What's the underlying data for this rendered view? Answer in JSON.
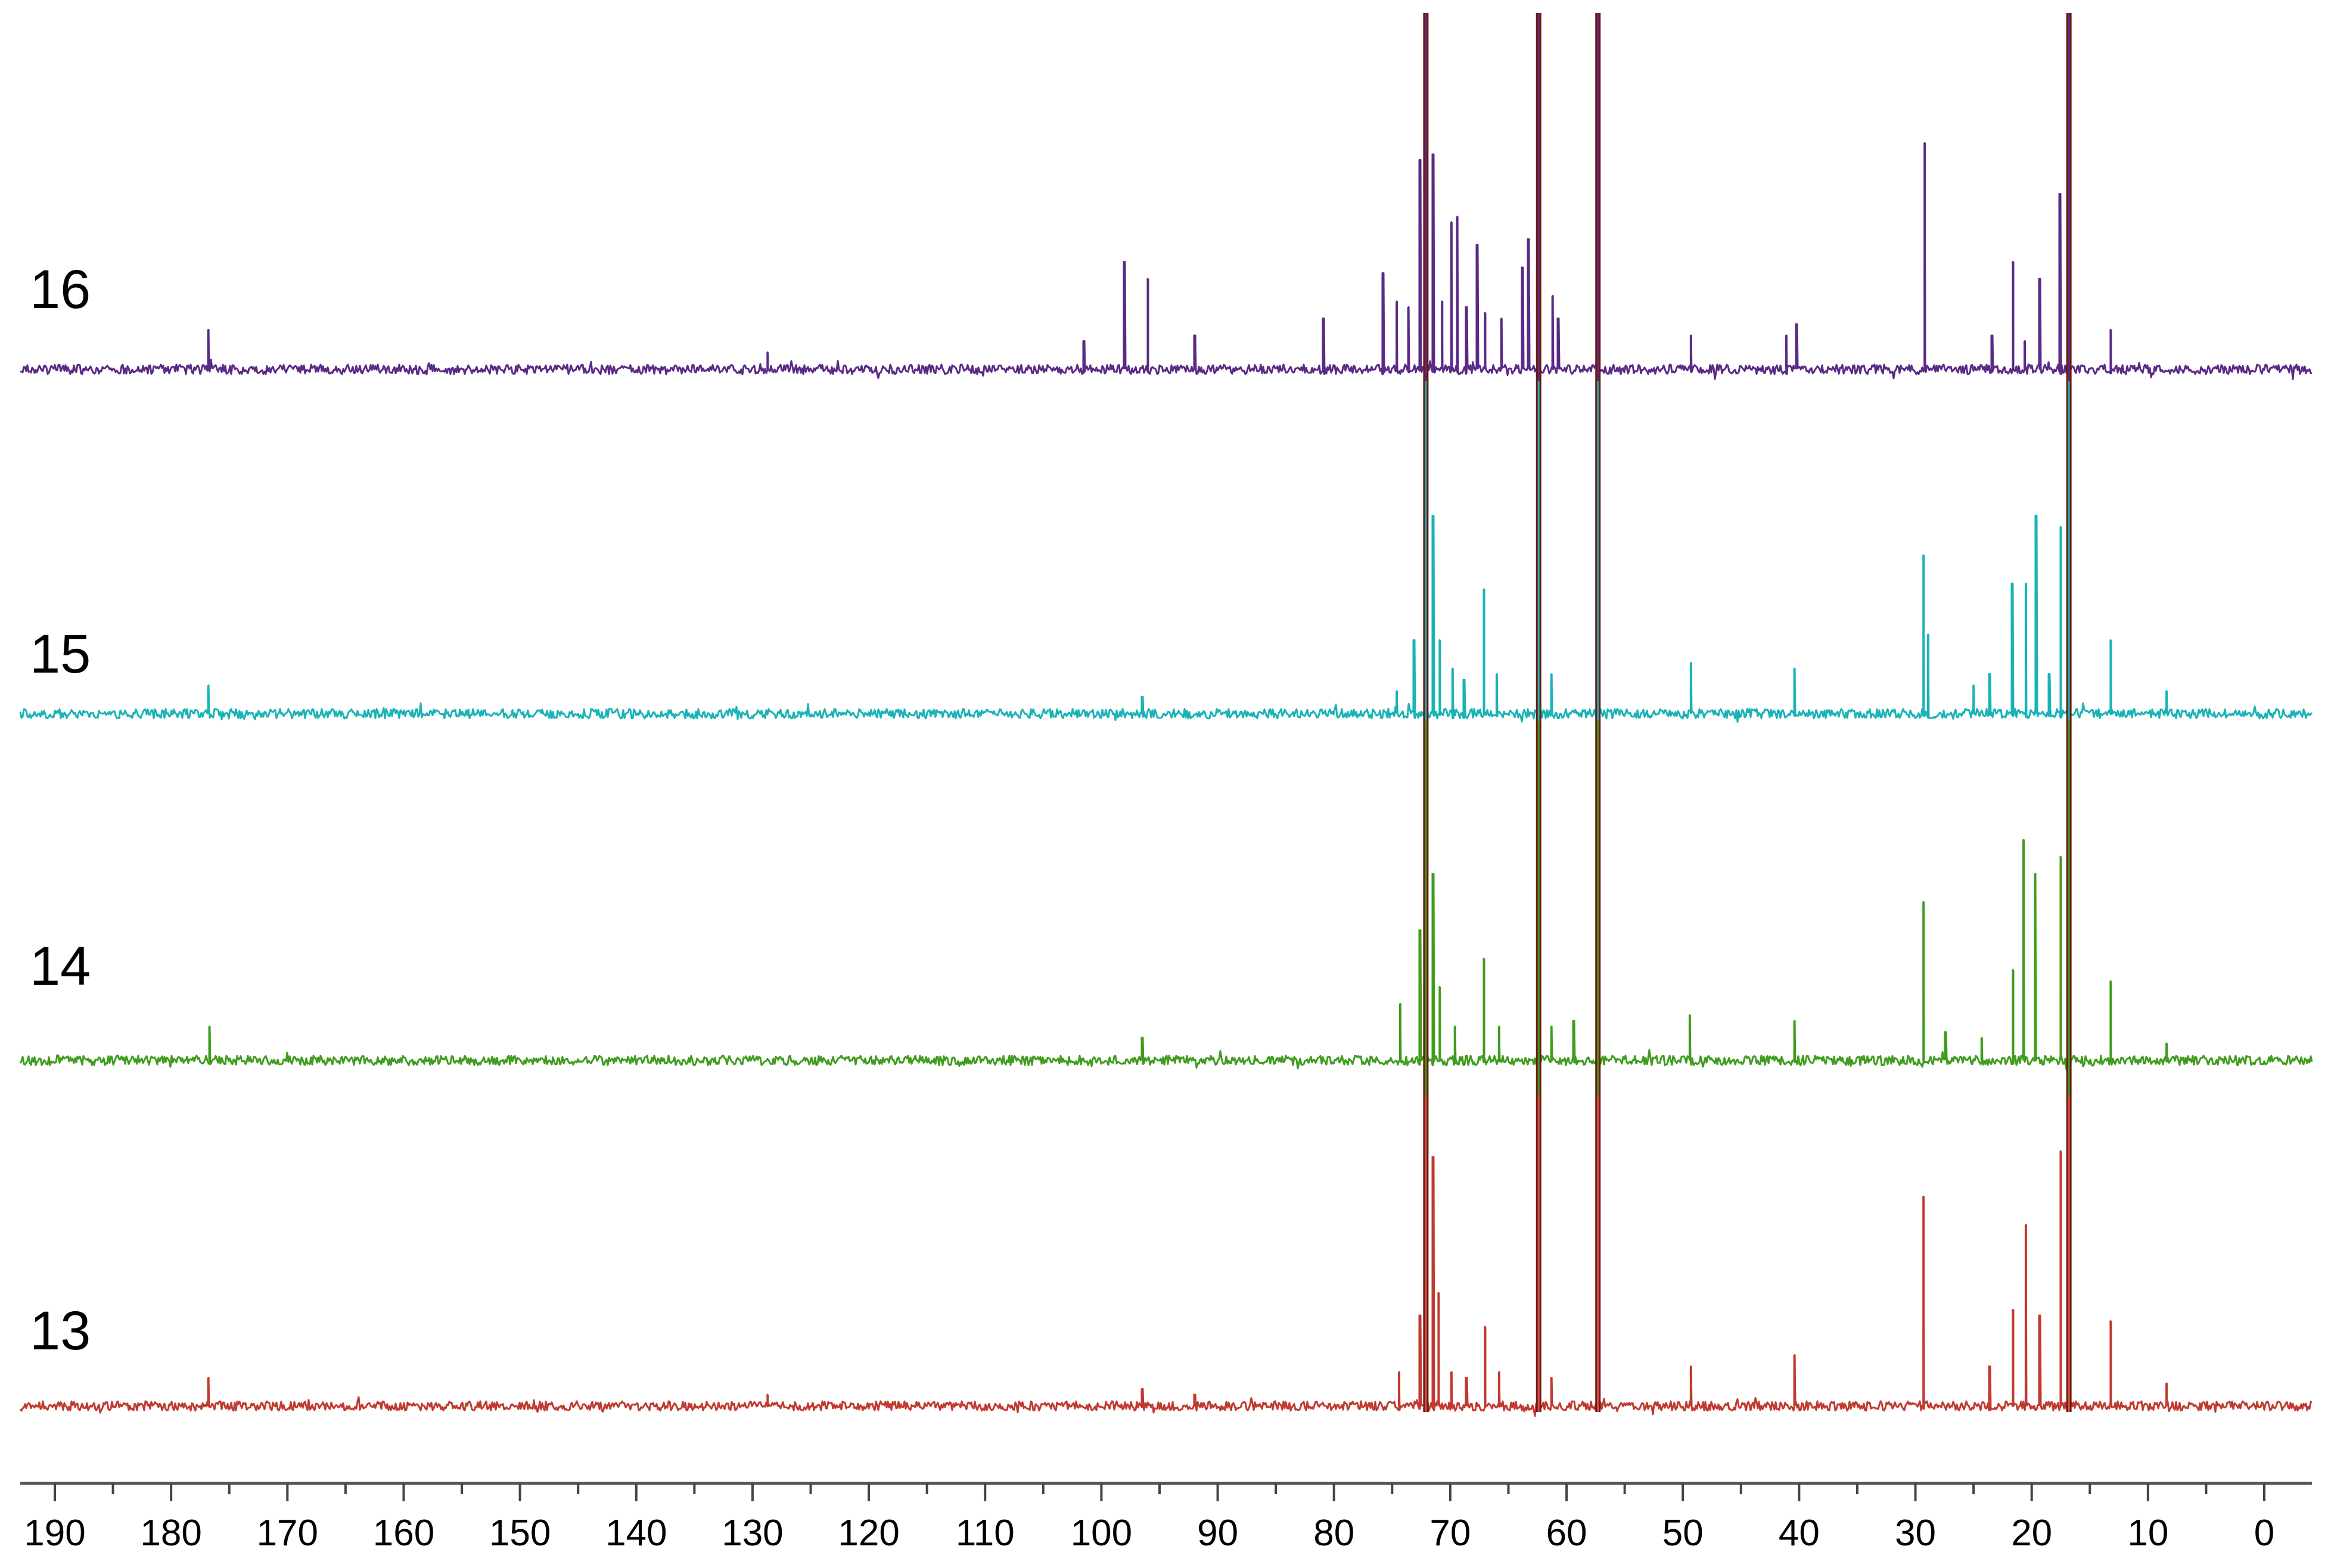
{
  "chart_data": {
    "type": "line",
    "title": "",
    "xlabel": "",
    "ylabel": "",
    "x_axis": {
      "reversed": true,
      "xlim": [
        193,
        -4
      ],
      "ticks": [
        190,
        180,
        170,
        160,
        150,
        140,
        130,
        120,
        110,
        100,
        90,
        80,
        70,
        60,
        50,
        40,
        30,
        20,
        10,
        0
      ],
      "tick_labels": [
        "190",
        "180",
        "170",
        "160",
        "150",
        "140",
        "130",
        "120",
        "110",
        "100",
        "90",
        "80",
        "70",
        "60",
        "50",
        "40",
        "30",
        "20",
        "10",
        "0"
      ],
      "minor_step": 5
    },
    "grid": false,
    "legend": "none",
    "solvent_lines": {
      "color": "#6b1a10",
      "positions": [
        72.1,
        62.4,
        57.3,
        16.8
      ]
    },
    "series": [
      {
        "label": "16",
        "color": "#5a2a86",
        "peaks": [
          [
            176.8,
            0.07
          ],
          [
            128.7,
            0.03
          ],
          [
            101.5,
            0.05
          ],
          [
            98.0,
            0.19
          ],
          [
            96.0,
            0.16
          ],
          [
            92.0,
            0.06
          ],
          [
            80.9,
            0.09
          ],
          [
            75.8,
            0.17
          ],
          [
            74.6,
            0.12
          ],
          [
            73.6,
            0.11
          ],
          [
            72.6,
            0.37
          ],
          [
            71.5,
            0.38
          ],
          [
            70.7,
            0.12
          ],
          [
            69.9,
            0.26
          ],
          [
            69.4,
            0.27
          ],
          [
            68.6,
            0.11
          ],
          [
            67.7,
            0.22
          ],
          [
            67.0,
            0.1
          ],
          [
            65.6,
            0.09
          ],
          [
            63.8,
            0.18
          ],
          [
            63.3,
            0.23
          ],
          [
            61.2,
            0.13
          ],
          [
            60.7,
            0.09
          ],
          [
            49.3,
            0.06
          ],
          [
            41.1,
            0.06
          ],
          [
            40.2,
            0.08
          ],
          [
            29.2,
            0.4
          ],
          [
            23.4,
            0.06
          ],
          [
            21.6,
            0.19
          ],
          [
            20.6,
            0.05
          ],
          [
            19.3,
            0.16
          ],
          [
            17.6,
            0.31
          ],
          [
            13.2,
            0.07
          ]
        ]
      },
      {
        "label": "15",
        "color": "#19b3b6",
        "peaks": [
          [
            176.8,
            0.05
          ],
          [
            96.5,
            0.03
          ],
          [
            74.6,
            0.04
          ],
          [
            73.1,
            0.13
          ],
          [
            71.5,
            0.35
          ],
          [
            70.9,
            0.13
          ],
          [
            69.8,
            0.08
          ],
          [
            68.8,
            0.06
          ],
          [
            67.1,
            0.22
          ],
          [
            66.0,
            0.07
          ],
          [
            61.3,
            0.07
          ],
          [
            49.3,
            0.09
          ],
          [
            40.4,
            0.08
          ],
          [
            29.3,
            0.28
          ],
          [
            28.9,
            0.14
          ],
          [
            25.0,
            0.05
          ],
          [
            23.6,
            0.07
          ],
          [
            21.7,
            0.23
          ],
          [
            20.5,
            0.23
          ],
          [
            19.6,
            0.35
          ],
          [
            18.5,
            0.07
          ],
          [
            17.5,
            0.33
          ],
          [
            13.2,
            0.13
          ],
          [
            8.4,
            0.04
          ]
        ]
      },
      {
        "label": "14",
        "color": "#3f9c1d",
        "peaks": [
          [
            176.7,
            0.06
          ],
          [
            96.5,
            0.04
          ],
          [
            74.3,
            0.1
          ],
          [
            72.6,
            0.23
          ],
          [
            71.5,
            0.33
          ],
          [
            70.9,
            0.13
          ],
          [
            69.6,
            0.06
          ],
          [
            67.1,
            0.18
          ],
          [
            65.8,
            0.06
          ],
          [
            61.3,
            0.06
          ],
          [
            59.4,
            0.07
          ],
          [
            49.4,
            0.08
          ],
          [
            40.4,
            0.07
          ],
          [
            29.3,
            0.28
          ],
          [
            27.4,
            0.05
          ],
          [
            24.3,
            0.04
          ],
          [
            21.6,
            0.16
          ],
          [
            20.7,
            0.39
          ],
          [
            19.7,
            0.33
          ],
          [
            17.5,
            0.36
          ],
          [
            13.2,
            0.14
          ],
          [
            8.4,
            0.03
          ]
        ]
      },
      {
        "label": "13",
        "color": "#c03a2f",
        "peaks": [
          [
            176.8,
            0.05
          ],
          [
            128.7,
            0.02
          ],
          [
            96.5,
            0.03
          ],
          [
            92.0,
            0.02
          ],
          [
            74.4,
            0.06
          ],
          [
            72.6,
            0.16
          ],
          [
            71.5,
            0.44
          ],
          [
            71.0,
            0.2
          ],
          [
            69.9,
            0.06
          ],
          [
            68.6,
            0.05
          ],
          [
            67.0,
            0.14
          ],
          [
            65.8,
            0.06
          ],
          [
            61.3,
            0.05
          ],
          [
            49.3,
            0.07
          ],
          [
            40.4,
            0.09
          ],
          [
            29.3,
            0.37
          ],
          [
            23.6,
            0.07
          ],
          [
            21.6,
            0.17
          ],
          [
            20.5,
            0.32
          ],
          [
            19.3,
            0.16
          ],
          [
            17.5,
            0.45
          ],
          [
            13.2,
            0.15
          ],
          [
            8.4,
            0.04
          ]
        ]
      }
    ]
  }
}
